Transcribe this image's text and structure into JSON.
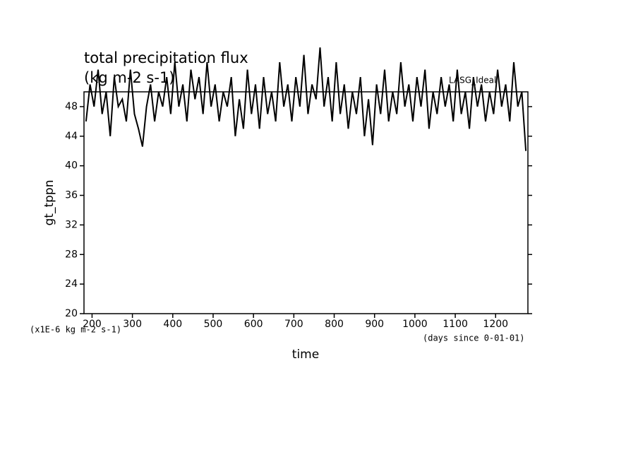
{
  "chart_data": {
    "type": "line",
    "title": "total precipitation flux",
    "subtitle": "(kg m-2 s-1)",
    "annotation": "LASG_Ideal",
    "y_label": "gt_tppn",
    "x_label": "time",
    "y_units": "(x1E-6 kg m-2 s-1)",
    "x_units": "(days since 0-01-01)",
    "xlim": [
      180,
      1280
    ],
    "ylim": [
      20,
      50
    ],
    "xticks": [
      200,
      300,
      400,
      500,
      600,
      700,
      800,
      900,
      1000,
      1100,
      1200
    ],
    "yticks": [
      20,
      24,
      28,
      32,
      36,
      40,
      44,
      48
    ],
    "x": [
      185,
      195,
      205,
      215,
      225,
      235,
      245,
      255,
      265,
      275,
      285,
      295,
      305,
      315,
      325,
      335,
      345,
      355,
      365,
      375,
      385,
      395,
      405,
      415,
      425,
      435,
      445,
      455,
      465,
      475,
      485,
      495,
      505,
      515,
      525,
      535,
      545,
      555,
      565,
      575,
      585,
      595,
      605,
      615,
      625,
      635,
      645,
      655,
      665,
      675,
      685,
      695,
      705,
      715,
      725,
      735,
      745,
      755,
      765,
      775,
      785,
      795,
      805,
      815,
      825,
      835,
      845,
      855,
      865,
      875,
      885,
      895,
      905,
      915,
      925,
      935,
      945,
      955,
      965,
      975,
      985,
      995,
      1005,
      1015,
      1025,
      1035,
      1045,
      1055,
      1065,
      1075,
      1085,
      1095,
      1105,
      1115,
      1125,
      1135,
      1145,
      1155,
      1165,
      1175,
      1185,
      1195,
      1205,
      1215,
      1225,
      1235,
      1245,
      1255,
      1265,
      1275
    ],
    "series": [
      {
        "color": "#000000",
        "values": [
          46,
          51,
          48,
          53,
          47,
          50,
          44,
          52,
          48,
          49,
          46,
          53,
          47,
          45,
          42.6,
          48,
          51,
          46,
          50,
          48,
          52,
          47,
          54,
          48,
          51,
          46,
          53,
          49,
          52,
          47,
          54,
          48,
          51,
          46,
          50,
          48,
          52,
          44,
          49,
          45,
          53,
          47,
          51,
          45,
          52,
          47,
          50,
          46,
          54,
          48,
          51,
          46,
          52,
          48,
          55,
          47,
          51,
          49,
          56,
          48,
          52,
          46,
          54,
          47,
          51,
          45,
          50,
          47,
          52,
          44,
          49,
          42.8,
          51,
          47,
          53,
          46,
          50,
          47,
          54,
          48,
          51,
          46,
          52,
          48,
          53,
          45,
          50,
          47,
          52,
          48,
          51,
          46,
          53,
          47,
          50,
          45,
          52,
          48,
          51,
          46,
          50,
          47,
          53,
          48,
          51,
          46,
          54,
          48,
          50,
          42
        ]
      }
    ]
  }
}
